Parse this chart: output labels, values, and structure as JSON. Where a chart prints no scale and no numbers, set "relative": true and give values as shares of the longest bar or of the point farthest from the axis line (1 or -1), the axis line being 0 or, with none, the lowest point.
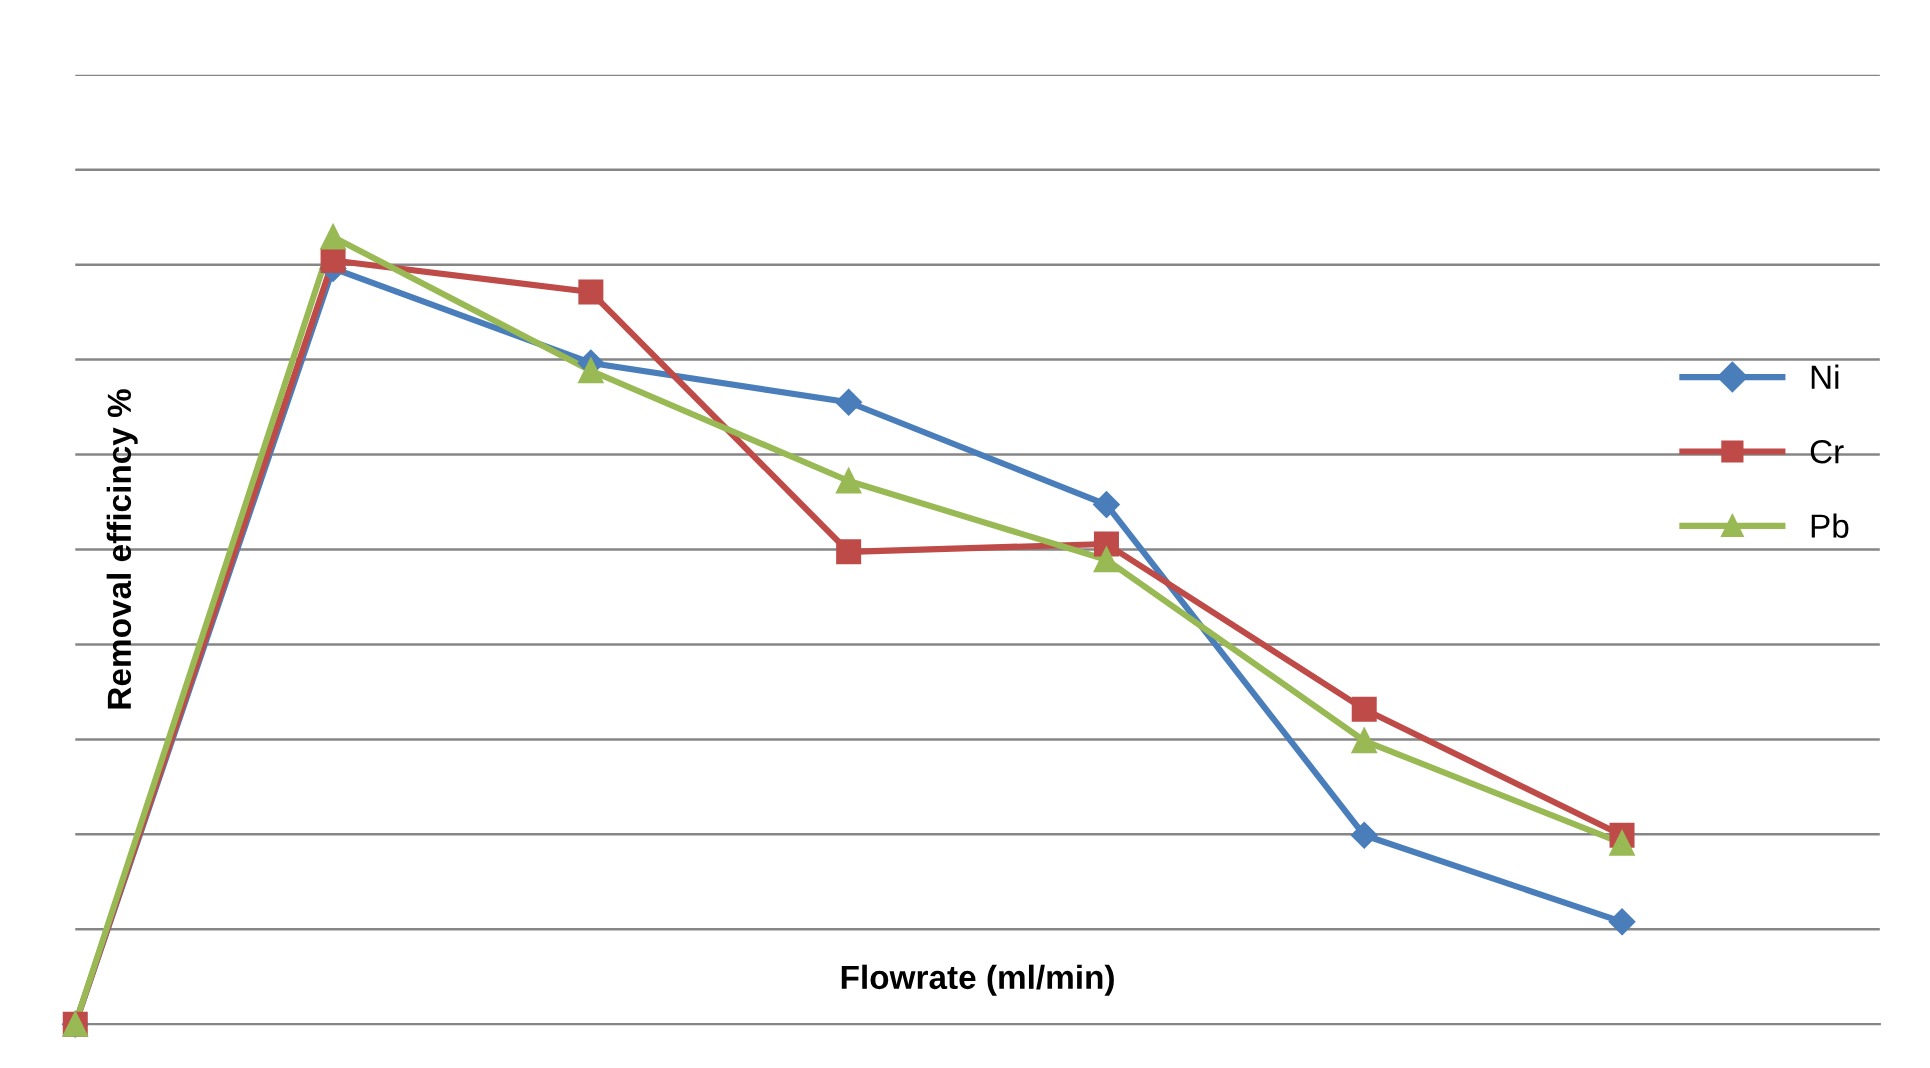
{
  "chart_data": {
    "type": "line",
    "relative": true,
    "xlabel": "Flowrate (ml/min)",
    "ylabel": "Removal efficincy %",
    "categories": [
      null,
      null,
      null,
      null,
      null,
      null,
      null
    ],
    "grid": "y",
    "legend": "right",
    "series": [
      {
        "name": "Ni",
        "color": "#4a7ebb",
        "marker": "diamond",
        "values": [
          0,
          0.96,
          0.84,
          0.79,
          0.66,
          0.24,
          0.13
        ]
      },
      {
        "name": "Cr",
        "color": "#be4b48",
        "marker": "square",
        "values": [
          0,
          0.97,
          0.93,
          0.6,
          0.61,
          0.4,
          0.24
        ]
      },
      {
        "name": "Pb",
        "color": "#98b954",
        "marker": "triangle",
        "values": [
          0,
          1,
          0.83,
          0.69,
          0.59,
          0.36,
          0.23
        ]
      }
    ]
  }
}
